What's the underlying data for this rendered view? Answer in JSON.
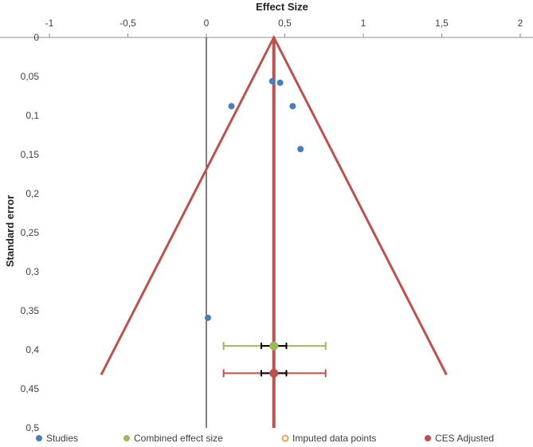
{
  "chart_data": {
    "type": "scatter",
    "title": "",
    "xlabel": "Effect Size",
    "ylabel": "Standard error",
    "xlim": [
      -1,
      2
    ],
    "ylim": [
      0,
      0.5
    ],
    "y_reversed": true,
    "x_axis_position": "top",
    "x_ticks": [
      "-1",
      "-0,5",
      "0",
      "0,5",
      "1",
      "1,5",
      "2"
    ],
    "y_ticks": [
      "0",
      "0,05",
      "0,1",
      "0,15",
      "0,2",
      "0,25",
      "0,3",
      "0,35",
      "0,4",
      "0,45",
      "0,5"
    ],
    "grid": false,
    "legend_position": "bottom",
    "colors": {
      "studies": "#4a7ebb",
      "combined": "#9bbb59",
      "imputed": "#f79646",
      "adjusted": "#c0504d",
      "axis": "#000000"
    },
    "series": [
      {
        "name": "Studies",
        "points": [
          {
            "x": 0.42,
            "y": 0.056
          },
          {
            "x": 0.47,
            "y": 0.058
          },
          {
            "x": 0.16,
            "y": 0.088
          },
          {
            "x": 0.55,
            "y": 0.088
          },
          {
            "x": 0.6,
            "y": 0.143
          },
          {
            "x": 0.01,
            "y": 0.359
          }
        ]
      },
      {
        "name": "Combined effect size",
        "points": [
          {
            "x": 0.43,
            "y": 0.395
          }
        ],
        "ci": [
          0.11,
          0.76
        ],
        "inner_ci": [
          0.35,
          0.51
        ]
      },
      {
        "name": "Imputed data points",
        "points": []
      },
      {
        "name": "CES Adjusted",
        "points": [
          {
            "x": 0.43,
            "y": 0.43
          }
        ],
        "ci": [
          0.11,
          0.76
        ],
        "inner_ci": [
          0.35,
          0.51
        ],
        "funnel": {
          "apex": {
            "x": 0.43,
            "y": 0
          },
          "left_base": {
            "x": -0.67,
            "y": 0.432
          },
          "right_base": {
            "x": 1.53,
            "y": 0.432
          },
          "vertical_line_bottom": 0.5
        }
      }
    ]
  }
}
